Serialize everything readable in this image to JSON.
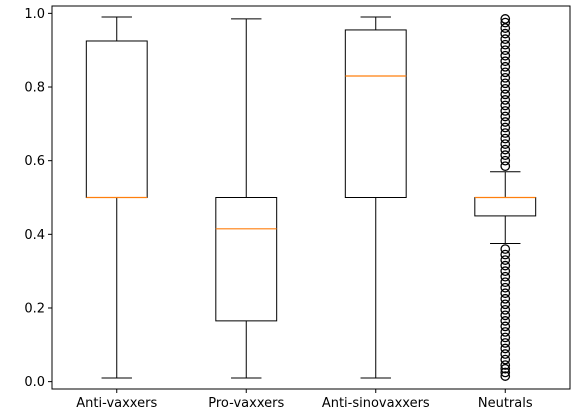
{
  "chart_data": {
    "type": "boxplot",
    "categories": [
      "Anti-vaxxers",
      "Pro-vaxxers",
      "Anti-sinovaxxers",
      "Neutrals"
    ],
    "y_ticks": [
      "0.0",
      "0.2",
      "0.4",
      "0.6",
      "0.8",
      "1.0"
    ],
    "ylim": [
      -0.02,
      1.02
    ],
    "grid": false,
    "colors": {
      "box": "#000000",
      "median": "#ff7f0e",
      "flier": "#000000"
    },
    "boxes": [
      {
        "whisker_low": 0.01,
        "q1": 0.5,
        "median": 0.5,
        "q3": 0.925,
        "whisker_high": 0.99,
        "fliers": []
      },
      {
        "whisker_low": 0.01,
        "q1": 0.165,
        "median": 0.415,
        "q3": 0.5,
        "whisker_high": 0.985,
        "fliers": []
      },
      {
        "whisker_low": 0.01,
        "q1": 0.5,
        "median": 0.83,
        "q3": 0.955,
        "whisker_high": 0.99,
        "fliers": []
      },
      {
        "whisker_low": 0.375,
        "q1": 0.45,
        "median": 0.5,
        "q3": 0.5,
        "whisker_high": 0.57,
        "fliers": [
          0.015,
          0.025,
          0.035,
          0.045,
          0.06,
          0.075,
          0.09,
          0.105,
          0.12,
          0.135,
          0.15,
          0.165,
          0.18,
          0.195,
          0.21,
          0.225,
          0.24,
          0.255,
          0.27,
          0.285,
          0.3,
          0.315,
          0.33,
          0.345,
          0.36,
          0.585,
          0.6,
          0.615,
          0.63,
          0.645,
          0.66,
          0.675,
          0.69,
          0.705,
          0.72,
          0.735,
          0.75,
          0.765,
          0.78,
          0.795,
          0.81,
          0.825,
          0.84,
          0.855,
          0.87,
          0.885,
          0.9,
          0.915,
          0.93,
          0.945,
          0.96,
          0.975,
          0.985
        ]
      }
    ]
  }
}
